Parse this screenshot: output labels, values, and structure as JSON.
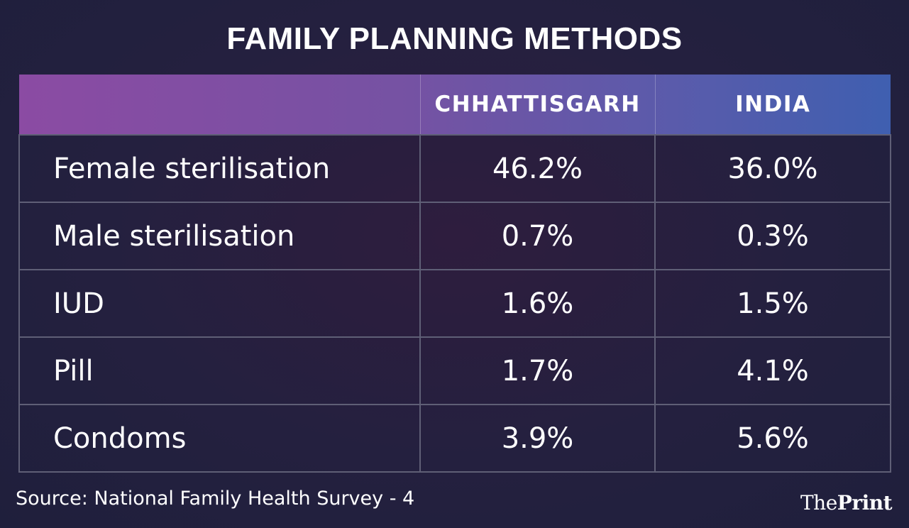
{
  "chart_data": {
    "type": "table",
    "title": "FAMILY PLANNING METHODS",
    "columns": [
      "",
      "CHHATTISGARH",
      "INDIA"
    ],
    "rows": [
      {
        "method": "Female sterilisation",
        "chhattisgarh": "46.2%",
        "india": "36.0%"
      },
      {
        "method": "Male sterilisation",
        "chhattisgarh": "0.7%",
        "india": "0.3%"
      },
      {
        "method": "IUD",
        "chhattisgarh": "1.6%",
        "india": "1.5%"
      },
      {
        "method": "Pill",
        "chhattisgarh": "1.7%",
        "india": "4.1%"
      },
      {
        "method": "Condoms",
        "chhattisgarh": "3.9%",
        "india": "5.6%"
      }
    ],
    "source": "Source: National Family Health Survey - 4"
  },
  "branding": {
    "logo_the": "The",
    "logo_print": "Print"
  },
  "colors": {
    "background": "#222040",
    "header_start": "#8b4ba3",
    "header_end": "#3f5fb0",
    "grid": "#5f5f76"
  }
}
